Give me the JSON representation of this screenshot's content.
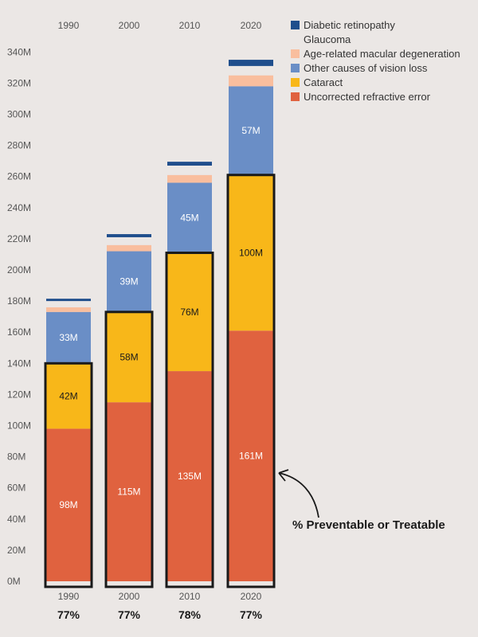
{
  "chart_data": {
    "type": "bar",
    "stacked": true,
    "categories": [
      "1990",
      "2000",
      "2010",
      "2020"
    ],
    "ylim": [
      0,
      340
    ],
    "y_ticks": [
      "0M",
      "20M",
      "40M",
      "60M",
      "80M",
      "100M",
      "120M",
      "140M",
      "160M",
      "180M",
      "200M",
      "220M",
      "240M",
      "260M",
      "280M",
      "300M",
      "320M",
      "340M"
    ],
    "series": [
      {
        "name": "Uncorrected refractive error",
        "color": "#e0623f",
        "label_color": "#ffffff",
        "values": [
          98,
          115,
          135,
          161
        ],
        "labels": [
          "98M",
          "115M",
          "135M",
          "161M"
        ]
      },
      {
        "name": "Cataract",
        "color": "#f8b719",
        "label_color": "#1a1a1a",
        "values": [
          42,
          58,
          76,
          100
        ],
        "labels": [
          "42M",
          "58M",
          "76M",
          "100M"
        ]
      },
      {
        "name": "Other causes of vision loss",
        "color": "#6a8ec6",
        "label_color": "#ffffff",
        "values": [
          33,
          39,
          45,
          57
        ],
        "labels": [
          "33M",
          "39M",
          "45M",
          "57M"
        ]
      },
      {
        "name": "Age-related macular degeneration",
        "color": "#f9be9e",
        "label_color": "#1a1a1a",
        "values": [
          3,
          4,
          5,
          7
        ],
        "labels": [
          "",
          "",
          "",
          ""
        ]
      },
      {
        "name": "Glaucoma",
        "color": "#ebe7e5",
        "label_color": "#1a1a1a",
        "values": [
          4,
          5,
          6,
          6
        ],
        "labels": [
          "",
          "",
          "",
          ""
        ]
      },
      {
        "name": "Diabetic retinopathy",
        "color": "#1f4e8c",
        "label_color": "#ffffff",
        "values": [
          1.5,
          2,
          2.5,
          4
        ],
        "labels": [
          "",
          "",
          "",
          ""
        ]
      }
    ],
    "legend_order": [
      5,
      4,
      3,
      2,
      1,
      0
    ],
    "legend_position": "top-right",
    "top_years": [
      "1990",
      "2000",
      "2010",
      "2020"
    ],
    "bottom_years": [
      "1990",
      "2000",
      "2010",
      "2020"
    ],
    "percent_labels": [
      "77%",
      "77%",
      "78%",
      "77%"
    ],
    "annotation": "% Preventable or Treatable",
    "highlight_color": "#1a1a1a"
  }
}
